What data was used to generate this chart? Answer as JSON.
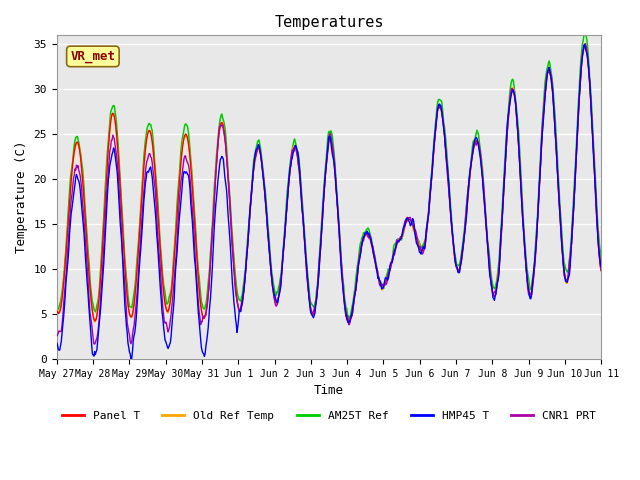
{
  "title": "Temperatures",
  "xlabel": "Time",
  "ylabel": "Temperature (C)",
  "ylim": [
    0,
    36
  ],
  "yticks": [
    0,
    5,
    10,
    15,
    20,
    25,
    30,
    35
  ],
  "background_color": "#e8e8e8",
  "annotation_text": "VR_met",
  "annotation_color": "#8b0000",
  "annotation_bg": "#ffff99",
  "series_colors": {
    "Panel T": "#ff0000",
    "Old Ref Temp": "#ffa500",
    "AM25T Ref": "#00cc00",
    "HMP45 T": "#0000ff",
    "CNR1 PRT": "#aa00aa"
  },
  "xtick_labels": [
    "May 27",
    "May 28",
    "May 29",
    "May 30",
    "May 31",
    "Jun 1",
    "Jun 2",
    "Jun 3",
    "Jun 4",
    "Jun 5",
    "Jun 6",
    "Jun 7",
    "Jun 8",
    "Jun 9",
    "Jun 10",
    "Jun 11"
  ],
  "n_days": 15,
  "n_points_per_day": 48,
  "base_min": [
    5,
    3.5,
    5.5,
    5,
    4,
    6.5,
    6,
    4,
    4,
    12,
    12,
    8,
    6,
    8,
    9
  ],
  "base_max": [
    24,
    27.5,
    25.5,
    25,
    26.5,
    23.5,
    23.5,
    25,
    14,
    13.5,
    28.5,
    24,
    30,
    32,
    35
  ]
}
